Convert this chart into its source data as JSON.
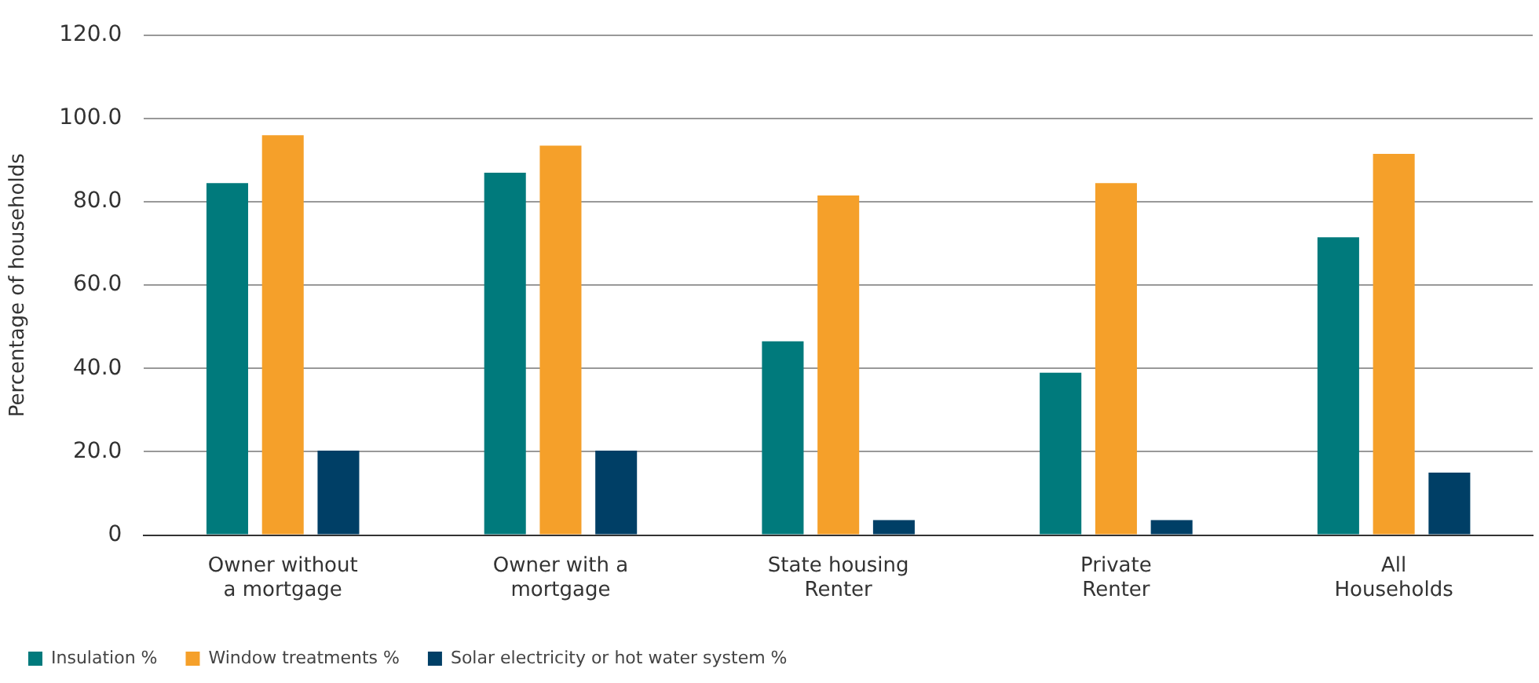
{
  "chart_data": {
    "type": "bar",
    "ylabel": "Percentage of households",
    "categories": [
      "Owner without\na mortgage",
      "Owner with a\nmortgage",
      "State housing\nRenter",
      "Private\nRenter",
      "All\nHouseholds"
    ],
    "series": [
      {
        "name": "Insulation %",
        "color": "#007a7c",
        "values": [
          84.5,
          87.0,
          46.5,
          39.0,
          71.5
        ]
      },
      {
        "name": "Window treatments %",
        "color": "#f5a02a",
        "values": [
          96.0,
          93.5,
          81.5,
          84.5,
          91.5
        ]
      },
      {
        "name": "Solar electricity or hot water system %",
        "color": "#003f66",
        "values": [
          20.3,
          20.3,
          3.6,
          3.6,
          15.0
        ]
      }
    ],
    "ylim": [
      0,
      120
    ],
    "yticks": [
      {
        "value": 0,
        "label": "0"
      },
      {
        "value": 20,
        "label": "20.0"
      },
      {
        "value": 40,
        "label": "40.0"
      },
      {
        "value": 60,
        "label": "60.0"
      },
      {
        "value": 80,
        "label": "80.0"
      },
      {
        "value": 100,
        "label": "100.0"
      },
      {
        "value": 120,
        "label": "120.0"
      }
    ],
    "grid": "y",
    "legend": "bottom left"
  }
}
